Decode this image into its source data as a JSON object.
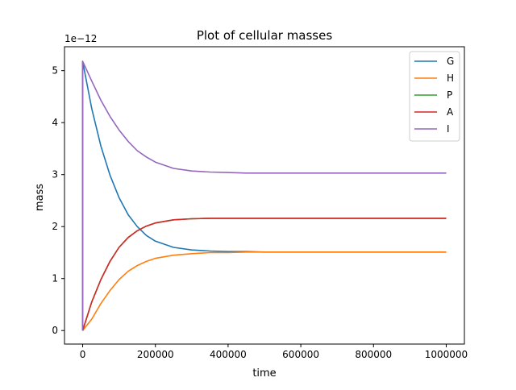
{
  "chart_data": {
    "type": "line",
    "title": "Plot of cellular masses",
    "xlabel": "time",
    "ylabel": "mass",
    "y_offset_text": "1e−12",
    "xlim": [
      -50000,
      1050000
    ],
    "ylim": [
      -0.26,
      5.46
    ],
    "y_scale_note": "values in units of 1e-12",
    "xticks": [
      0,
      200000,
      400000,
      600000,
      800000,
      1000000
    ],
    "xtick_labels": [
      "0",
      "200000",
      "400000",
      "600000",
      "800000",
      "1000000"
    ],
    "yticks": [
      0,
      1,
      2,
      3,
      4,
      5
    ],
    "ytick_labels": [
      "0",
      "1",
      "2",
      "3",
      "4",
      "5"
    ],
    "grid": false,
    "legend_position": "top-right",
    "x": [
      0,
      25000,
      50000,
      75000,
      100000,
      125000,
      150000,
      175000,
      200000,
      250000,
      300000,
      350000,
      400000,
      450000,
      500000,
      600000,
      700000,
      800000,
      900000,
      1000000
    ],
    "series": [
      {
        "name": "G",
        "color": "#1f77b4",
        "start_spike": 0,
        "values": [
          5.18,
          4.27,
          3.55,
          2.99,
          2.56,
          2.23,
          2.0,
          1.83,
          1.72,
          1.6,
          1.55,
          1.53,
          1.52,
          1.52,
          1.51,
          1.51,
          1.51,
          1.51,
          1.51,
          1.51
        ]
      },
      {
        "name": "H",
        "color": "#ff7f0e",
        "start_spike": 0,
        "values": [
          0.0,
          0.22,
          0.52,
          0.77,
          0.98,
          1.14,
          1.25,
          1.33,
          1.39,
          1.45,
          1.48,
          1.5,
          1.5,
          1.51,
          1.51,
          1.51,
          1.51,
          1.51,
          1.51,
          1.51
        ]
      },
      {
        "name": "P",
        "color": "#2ca02c",
        "start_spike": 0,
        "values": [
          0.0,
          0.55,
          0.98,
          1.33,
          1.6,
          1.79,
          1.92,
          2.01,
          2.07,
          2.13,
          2.15,
          2.16,
          2.16,
          2.16,
          2.16,
          2.16,
          2.16,
          2.16,
          2.16,
          2.16
        ]
      },
      {
        "name": "A",
        "color": "#d62728",
        "start_spike": 0,
        "values": [
          0.0,
          0.55,
          0.98,
          1.33,
          1.6,
          1.79,
          1.92,
          2.01,
          2.07,
          2.13,
          2.15,
          2.16,
          2.16,
          2.16,
          2.16,
          2.16,
          2.16,
          2.16,
          2.16,
          2.16
        ]
      },
      {
        "name": "I",
        "color": "#9467bd",
        "start_spike": 0,
        "values": [
          5.18,
          4.8,
          4.43,
          4.12,
          3.86,
          3.64,
          3.46,
          3.34,
          3.24,
          3.12,
          3.07,
          3.05,
          3.04,
          3.03,
          3.03,
          3.03,
          3.03,
          3.03,
          3.03,
          3.03
        ]
      }
    ]
  }
}
